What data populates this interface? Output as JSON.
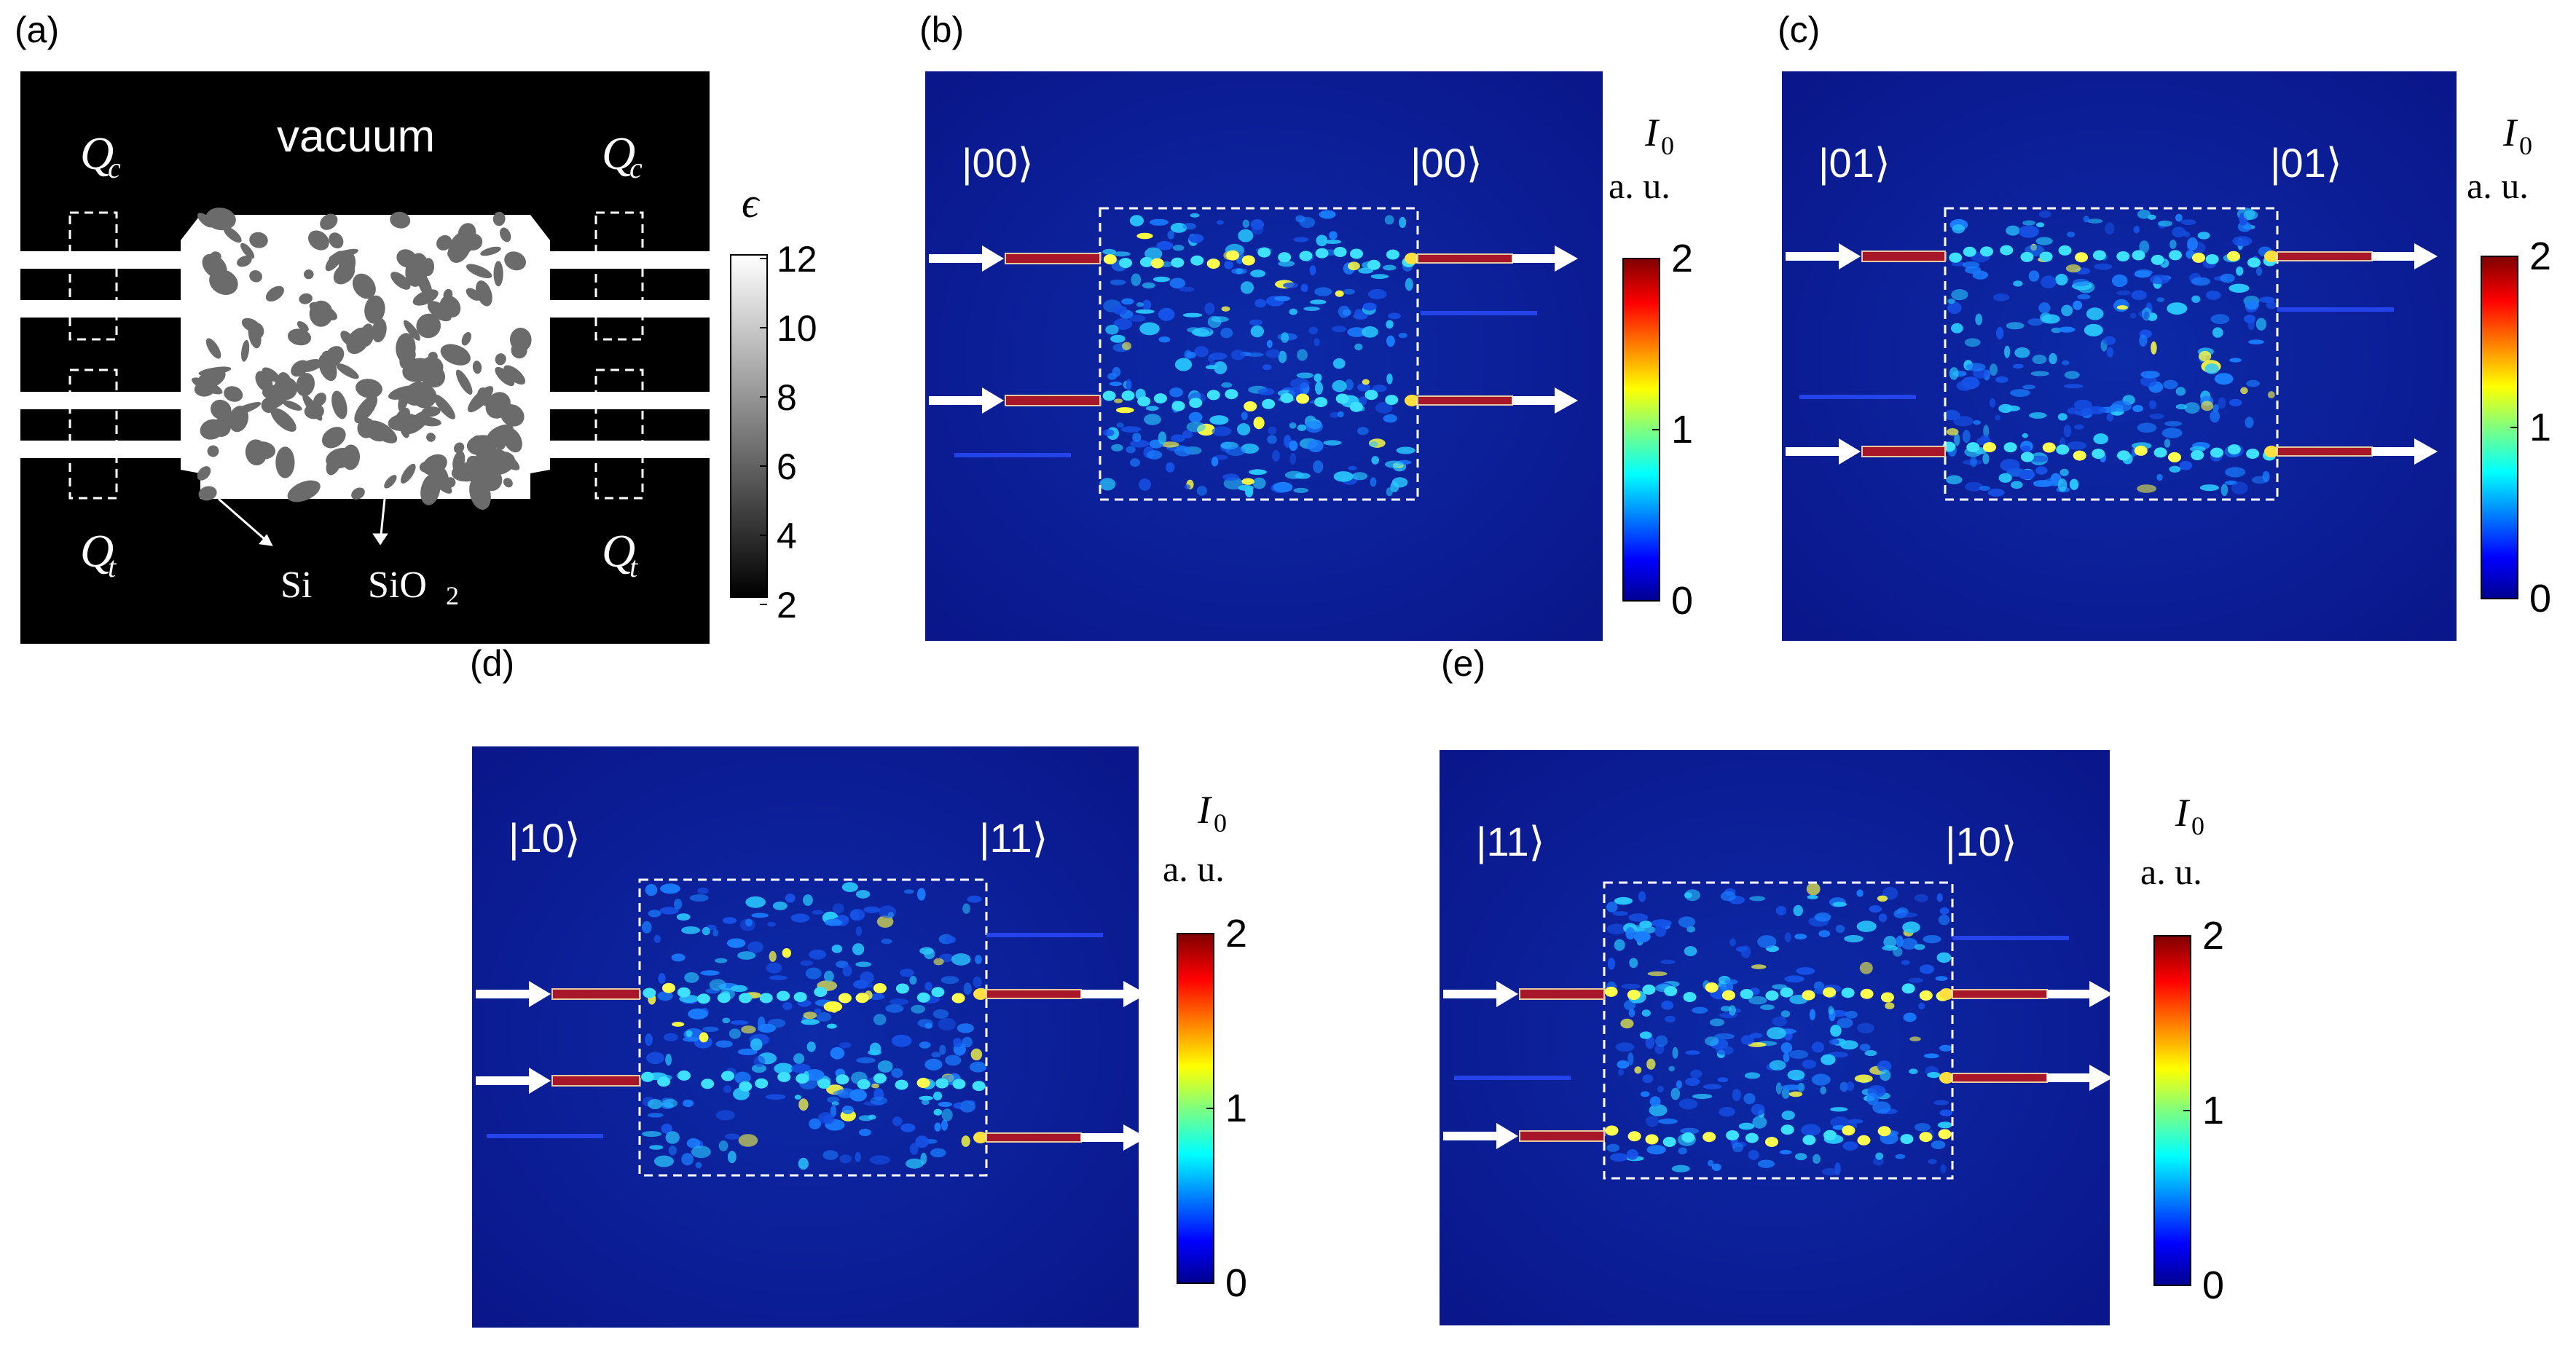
{
  "panel_a": {
    "label": "(a)",
    "vacuum": "vacuum",
    "qc": "Q",
    "qc_sub": "c",
    "qt": "Q",
    "qt_sub": "t",
    "si": "Si",
    "sio2": "SiO",
    "sio2_sub": "2",
    "colorbar_title": "ϵ",
    "colorbar_ticks": [
      "12",
      "10",
      "8",
      "6",
      "4",
      "2"
    ]
  },
  "panels": [
    {
      "label": "(b)",
      "input_state": "|00⟩",
      "output_state": "|00⟩"
    },
    {
      "label": "(c)",
      "input_state": "|01⟩",
      "output_state": "|01⟩"
    },
    {
      "label": "(d)",
      "input_state": "|10⟩",
      "output_state": "|11⟩"
    },
    {
      "label": "(e)",
      "input_state": "|11⟩",
      "output_state": "|10⟩"
    }
  ],
  "intensity_colorbar": {
    "symbol": "I",
    "subscript": "0",
    "unit": "a. u.",
    "ticks": [
      "2",
      "1",
      "0"
    ],
    "colors": {
      "high": "#7f0000",
      "mid_high": "#ff0000",
      "mid": "#ffff00",
      "mid_low": "#00ffff",
      "low": "#0000ff",
      "bottom": "#00008f"
    }
  },
  "colors": {
    "field_background": "#0a1a8c",
    "outline": "#ffffff",
    "waveguide_hot": "#a8162a"
  }
}
